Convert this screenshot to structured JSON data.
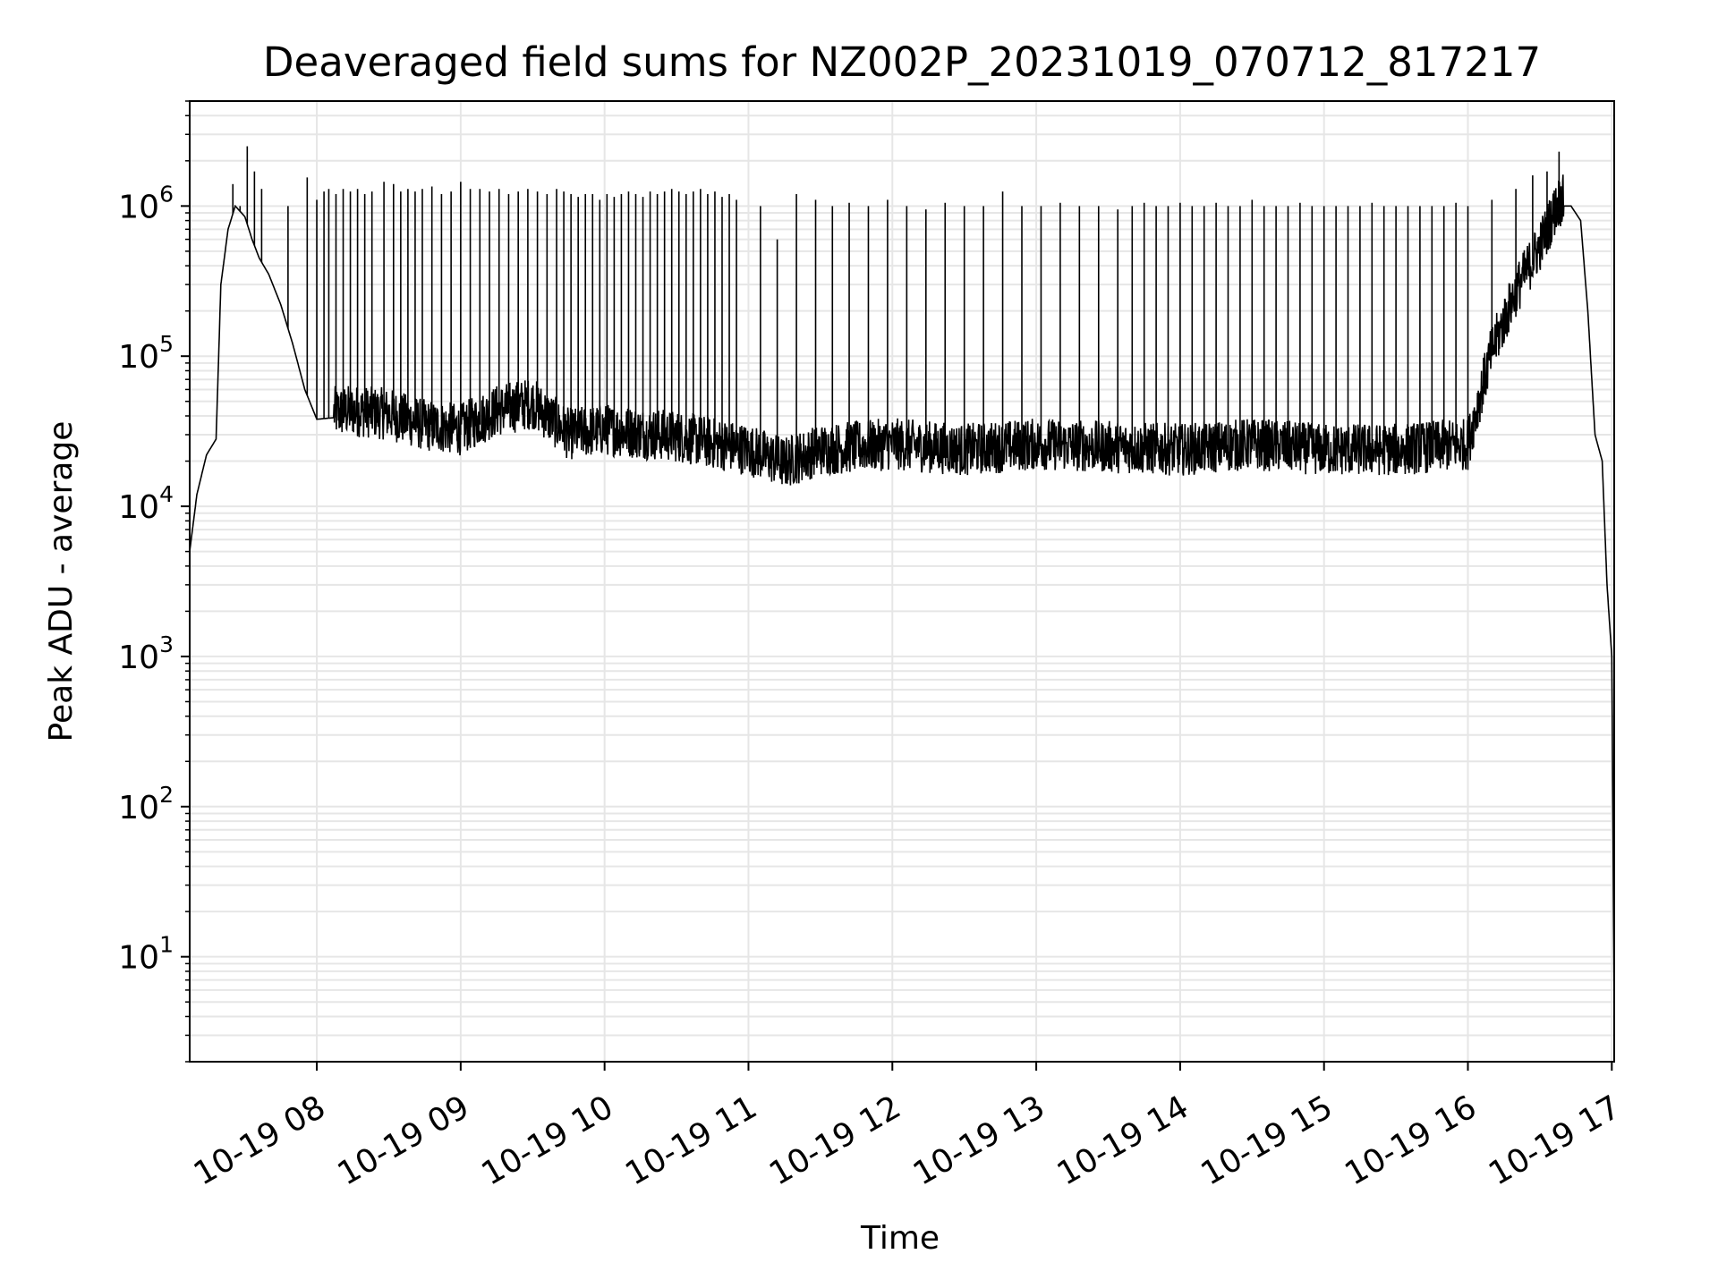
{
  "chart_data": {
    "type": "line",
    "title": "Deaveraged field sums for NZ002P_20231019_070712_817217",
    "xlabel": "Time",
    "ylabel": "Peak ADU - average",
    "xlim": [
      "2023-10-19 07:07",
      "2023-10-19 17:01"
    ],
    "ylim": [
      2,
      5000000
    ],
    "yscale": "log",
    "grid": true,
    "line_color": "#000000",
    "grid_color": "#e6e6e6",
    "x_ticks": [
      {
        "value": "2023-10-19 08:00",
        "label": "10-19 08"
      },
      {
        "value": "2023-10-19 09:00",
        "label": "10-19 09"
      },
      {
        "value": "2023-10-19 10:00",
        "label": "10-19 10"
      },
      {
        "value": "2023-10-19 11:00",
        "label": "10-19 11"
      },
      {
        "value": "2023-10-19 12:00",
        "label": "10-19 12"
      },
      {
        "value": "2023-10-19 13:00",
        "label": "10-19 13"
      },
      {
        "value": "2023-10-19 14:00",
        "label": "10-19 14"
      },
      {
        "value": "2023-10-19 15:00",
        "label": "10-19 15"
      },
      {
        "value": "2023-10-19 16:00",
        "label": "10-19 16"
      },
      {
        "value": "2023-10-19 17:00",
        "label": "10-19 17"
      }
    ],
    "y_ticks": [
      {
        "value": 10,
        "base": "10",
        "exp": "1"
      },
      {
        "value": 100,
        "base": "10",
        "exp": "2"
      },
      {
        "value": 1000,
        "base": "10",
        "exp": "3"
      },
      {
        "value": 10000,
        "base": "10",
        "exp": "4"
      },
      {
        "value": 100000,
        "base": "10",
        "exp": "5"
      },
      {
        "value": 1000000,
        "base": "10",
        "exp": "6"
      }
    ],
    "series": [
      {
        "baseline": {
          "x": [
            "2023-10-19 07:07",
            "2023-10-19 07:10",
            "2023-10-19 07:14",
            "2023-10-19 07:18",
            "2023-10-19 07:20",
            "2023-10-19 07:23",
            "2023-10-19 07:26",
            "2023-10-19 07:30",
            "2023-10-19 07:33",
            "2023-10-19 07:36",
            "2023-10-19 07:40",
            "2023-10-19 07:45",
            "2023-10-19 07:50",
            "2023-10-19 07:55",
            "2023-10-19 08:00",
            "2023-10-19 08:15",
            "2023-10-19 08:30",
            "2023-10-19 08:45",
            "2023-10-19 09:00",
            "2023-10-19 09:15",
            "2023-10-19 09:30",
            "2023-10-19 09:45",
            "2023-10-19 10:00",
            "2023-10-19 10:30",
            "2023-10-19 11:00",
            "2023-10-19 11:15",
            "2023-10-19 11:30",
            "2023-10-19 12:00",
            "2023-10-19 12:30",
            "2023-10-19 13:00",
            "2023-10-19 13:30",
            "2023-10-19 14:00",
            "2023-10-19 14:30",
            "2023-10-19 15:00",
            "2023-10-19 15:30",
            "2023-10-19 16:00",
            "2023-10-19 16:05",
            "2023-10-19 16:10",
            "2023-10-19 16:20",
            "2023-10-19 16:30",
            "2023-10-19 16:38",
            "2023-10-19 16:43",
            "2023-10-19 16:47",
            "2023-10-19 16:50",
            "2023-10-19 16:53",
            "2023-10-19 16:56",
            "2023-10-19 16:58",
            "2023-10-19 17:00",
            "2023-10-19 17:01"
          ],
          "y": [
            5000,
            12000,
            22000,
            28000,
            300000,
            700000,
            1000000,
            850000,
            600000,
            450000,
            350000,
            220000,
            120000,
            60000,
            38000,
            40000,
            38000,
            32000,
            30000,
            40000,
            45000,
            28000,
            30000,
            27000,
            22000,
            18000,
            22000,
            24000,
            22000,
            24000,
            23000,
            22000,
            24000,
            22000,
            22000,
            24000,
            50000,
            100000,
            250000,
            500000,
            1000000,
            1000000,
            800000,
            200000,
            30000,
            20000,
            3000,
            1000,
            4
          ]
        },
        "spikes": {
          "x": [
            "2023-10-19 07:25",
            "2023-10-19 07:28",
            "2023-10-19 07:31",
            "2023-10-19 07:34",
            "2023-10-19 07:37",
            "2023-10-19 07:48",
            "2023-10-19 07:56",
            "2023-10-19 08:00",
            "2023-10-19 08:03",
            "2023-10-19 08:05",
            "2023-10-19 08:08",
            "2023-10-19 08:11",
            "2023-10-19 08:14",
            "2023-10-19 08:17",
            "2023-10-19 08:20",
            "2023-10-19 08:23",
            "2023-10-19 08:28",
            "2023-10-19 08:32",
            "2023-10-19 08:35",
            "2023-10-19 08:38",
            "2023-10-19 08:41",
            "2023-10-19 08:44",
            "2023-10-19 08:48",
            "2023-10-19 08:52",
            "2023-10-19 08:56",
            "2023-10-19 09:00",
            "2023-10-19 09:04",
            "2023-10-19 09:08",
            "2023-10-19 09:12",
            "2023-10-19 09:16",
            "2023-10-19 09:20",
            "2023-10-19 09:24",
            "2023-10-19 09:28",
            "2023-10-19 09:32",
            "2023-10-19 09:36",
            "2023-10-19 09:40",
            "2023-10-19 09:43",
            "2023-10-19 09:46",
            "2023-10-19 09:49",
            "2023-10-19 09:52",
            "2023-10-19 09:55",
            "2023-10-19 09:58",
            "2023-10-19 10:01",
            "2023-10-19 10:04",
            "2023-10-19 10:07",
            "2023-10-19 10:10",
            "2023-10-19 10:13",
            "2023-10-19 10:16",
            "2023-10-19 10:19",
            "2023-10-19 10:22",
            "2023-10-19 10:25",
            "2023-10-19 10:28",
            "2023-10-19 10:31",
            "2023-10-19 10:34",
            "2023-10-19 10:37",
            "2023-10-19 10:40",
            "2023-10-19 10:43",
            "2023-10-19 10:46",
            "2023-10-19 10:49",
            "2023-10-19 10:52",
            "2023-10-19 10:55",
            "2023-10-19 11:05",
            "2023-10-19 11:12",
            "2023-10-19 11:20",
            "2023-10-19 11:28",
            "2023-10-19 11:35",
            "2023-10-19 11:42",
            "2023-10-19 11:50",
            "2023-10-19 11:58",
            "2023-10-19 12:06",
            "2023-10-19 12:14",
            "2023-10-19 12:22",
            "2023-10-19 12:30",
            "2023-10-19 12:38",
            "2023-10-19 12:46",
            "2023-10-19 12:54",
            "2023-10-19 13:02",
            "2023-10-19 13:10",
            "2023-10-19 13:18",
            "2023-10-19 13:26",
            "2023-10-19 13:34",
            "2023-10-19 13:40",
            "2023-10-19 13:45",
            "2023-10-19 13:50",
            "2023-10-19 13:55",
            "2023-10-19 14:00",
            "2023-10-19 14:05",
            "2023-10-19 14:10",
            "2023-10-19 14:15",
            "2023-10-19 14:20",
            "2023-10-19 14:25",
            "2023-10-19 14:30",
            "2023-10-19 14:35",
            "2023-10-19 14:40",
            "2023-10-19 14:45",
            "2023-10-19 14:50",
            "2023-10-19 14:55",
            "2023-10-19 15:00",
            "2023-10-19 15:05",
            "2023-10-19 15:10",
            "2023-10-19 15:15",
            "2023-10-19 15:20",
            "2023-10-19 15:25",
            "2023-10-19 15:30",
            "2023-10-19 15:35",
            "2023-10-19 15:40",
            "2023-10-19 15:45",
            "2023-10-19 15:50",
            "2023-10-19 15:55",
            "2023-10-19 16:00",
            "2023-10-19 16:10",
            "2023-10-19 16:20",
            "2023-10-19 16:27",
            "2023-10-19 16:33",
            "2023-10-19 16:38"
          ],
          "y": [
            1400000,
            1000000,
            2500000,
            1700000,
            1300000,
            1000000,
            1550000,
            1100000,
            1250000,
            1300000,
            1200000,
            1300000,
            1250000,
            1300000,
            1200000,
            1250000,
            1450000,
            1400000,
            1250000,
            1300000,
            1250000,
            1300000,
            1350000,
            1200000,
            1250000,
            1450000,
            1300000,
            1300000,
            1250000,
            1300000,
            1200000,
            1250000,
            1300000,
            1250000,
            1200000,
            1300000,
            1250000,
            1200000,
            1150000,
            1200000,
            1200000,
            1100000,
            1200000,
            1150000,
            1200000,
            1250000,
            1200000,
            1150000,
            1250000,
            1200000,
            1250000,
            1300000,
            1250000,
            1200000,
            1250000,
            1300000,
            1200000,
            1250000,
            1150000,
            1200000,
            1100000,
            1000000,
            600000,
            1200000,
            1100000,
            1000000,
            1050000,
            1000000,
            1100000,
            1000000,
            950000,
            1050000,
            1000000,
            1000000,
            1250000,
            1000000,
            1000000,
            1050000,
            1000000,
            1000000,
            950000,
            1000000,
            1050000,
            1000000,
            1000000,
            1050000,
            1000000,
            1000000,
            1050000,
            1000000,
            1000000,
            1100000,
            1000000,
            1000000,
            1000000,
            1050000,
            1000000,
            1000000,
            1000000,
            1000000,
            1000000,
            1050000,
            1000000,
            1000000,
            1000000,
            1000000,
            1000000,
            1000000,
            1050000,
            1000000,
            1100000,
            1300000,
            1600000,
            1700000,
            2300000
          ]
        }
      }
    ]
  }
}
